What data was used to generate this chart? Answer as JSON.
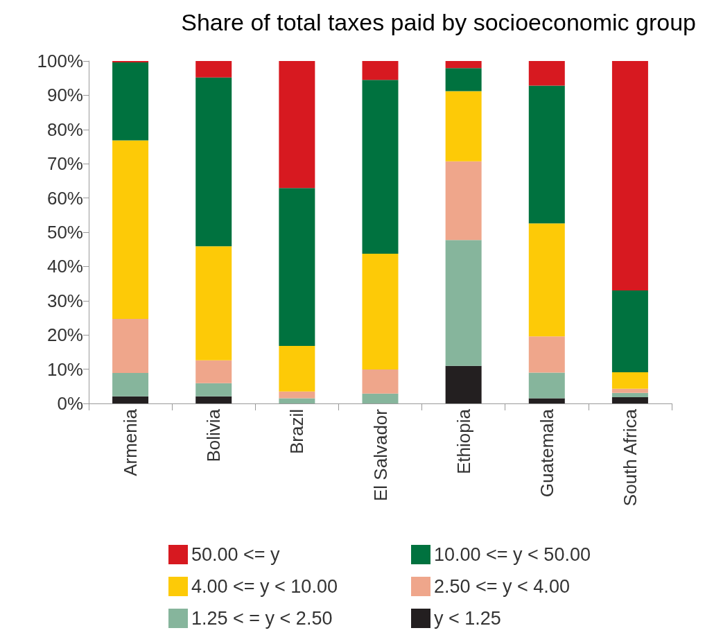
{
  "chart_data": {
    "type": "bar",
    "stacked": true,
    "title": "Share of total taxes paid by socioeconomic group",
    "categories": [
      "Armenia",
      "Bolivia",
      "Brazil",
      "El Salvador",
      "Ethiopia",
      "Guatemala",
      "South Africa"
    ],
    "ylim": [
      0,
      100
    ],
    "yticks": [
      {
        "value": 0,
        "label": "0%"
      },
      {
        "value": 10,
        "label": "10%"
      },
      {
        "value": 20,
        "label": "20%"
      },
      {
        "value": 30,
        "label": "30%"
      },
      {
        "value": 40,
        "label": "40%"
      },
      {
        "value": 50,
        "label": "50%"
      },
      {
        "value": 60,
        "label": "60%"
      },
      {
        "value": 70,
        "label": "70%"
      },
      {
        "value": 80,
        "label": "80%"
      },
      {
        "value": 90,
        "label": "90%"
      },
      {
        "value": 100,
        "label": "100%"
      }
    ],
    "grid": false,
    "legend": "bottom",
    "series": [
      {
        "name": "y < 1.25",
        "color": "#231f20",
        "values": [
          2.1,
          2.1,
          0,
          0,
          11.0,
          1.5,
          1.8
        ]
      },
      {
        "name": "1.25 < = y < 2.50",
        "color": "#86b59c",
        "values": [
          6.8,
          3.8,
          1.5,
          2.9,
          36.7,
          7.5,
          1.3
        ]
      },
      {
        "name": "2.50 <= y < 4.00",
        "color": "#efa68b",
        "values": [
          15.8,
          6.7,
          2.0,
          7.0,
          23.0,
          10.6,
          1.2
        ]
      },
      {
        "name": "4.00 <= y < 10.00",
        "color": "#fdca07",
        "values": [
          52.1,
          33.3,
          13.3,
          33.8,
          20.5,
          33.0,
          4.8
        ]
      },
      {
        "name": "10.00 <= y < 50.00",
        "color": "#00723f",
        "values": [
          22.8,
          49.3,
          46.1,
          50.8,
          6.7,
          40.2,
          23.9
        ]
      },
      {
        "name": "50.00 <= y",
        "color": "#d71920",
        "values": [
          0.4,
          4.8,
          37.1,
          5.5,
          2.1,
          7.2,
          67.0
        ]
      }
    ]
  }
}
